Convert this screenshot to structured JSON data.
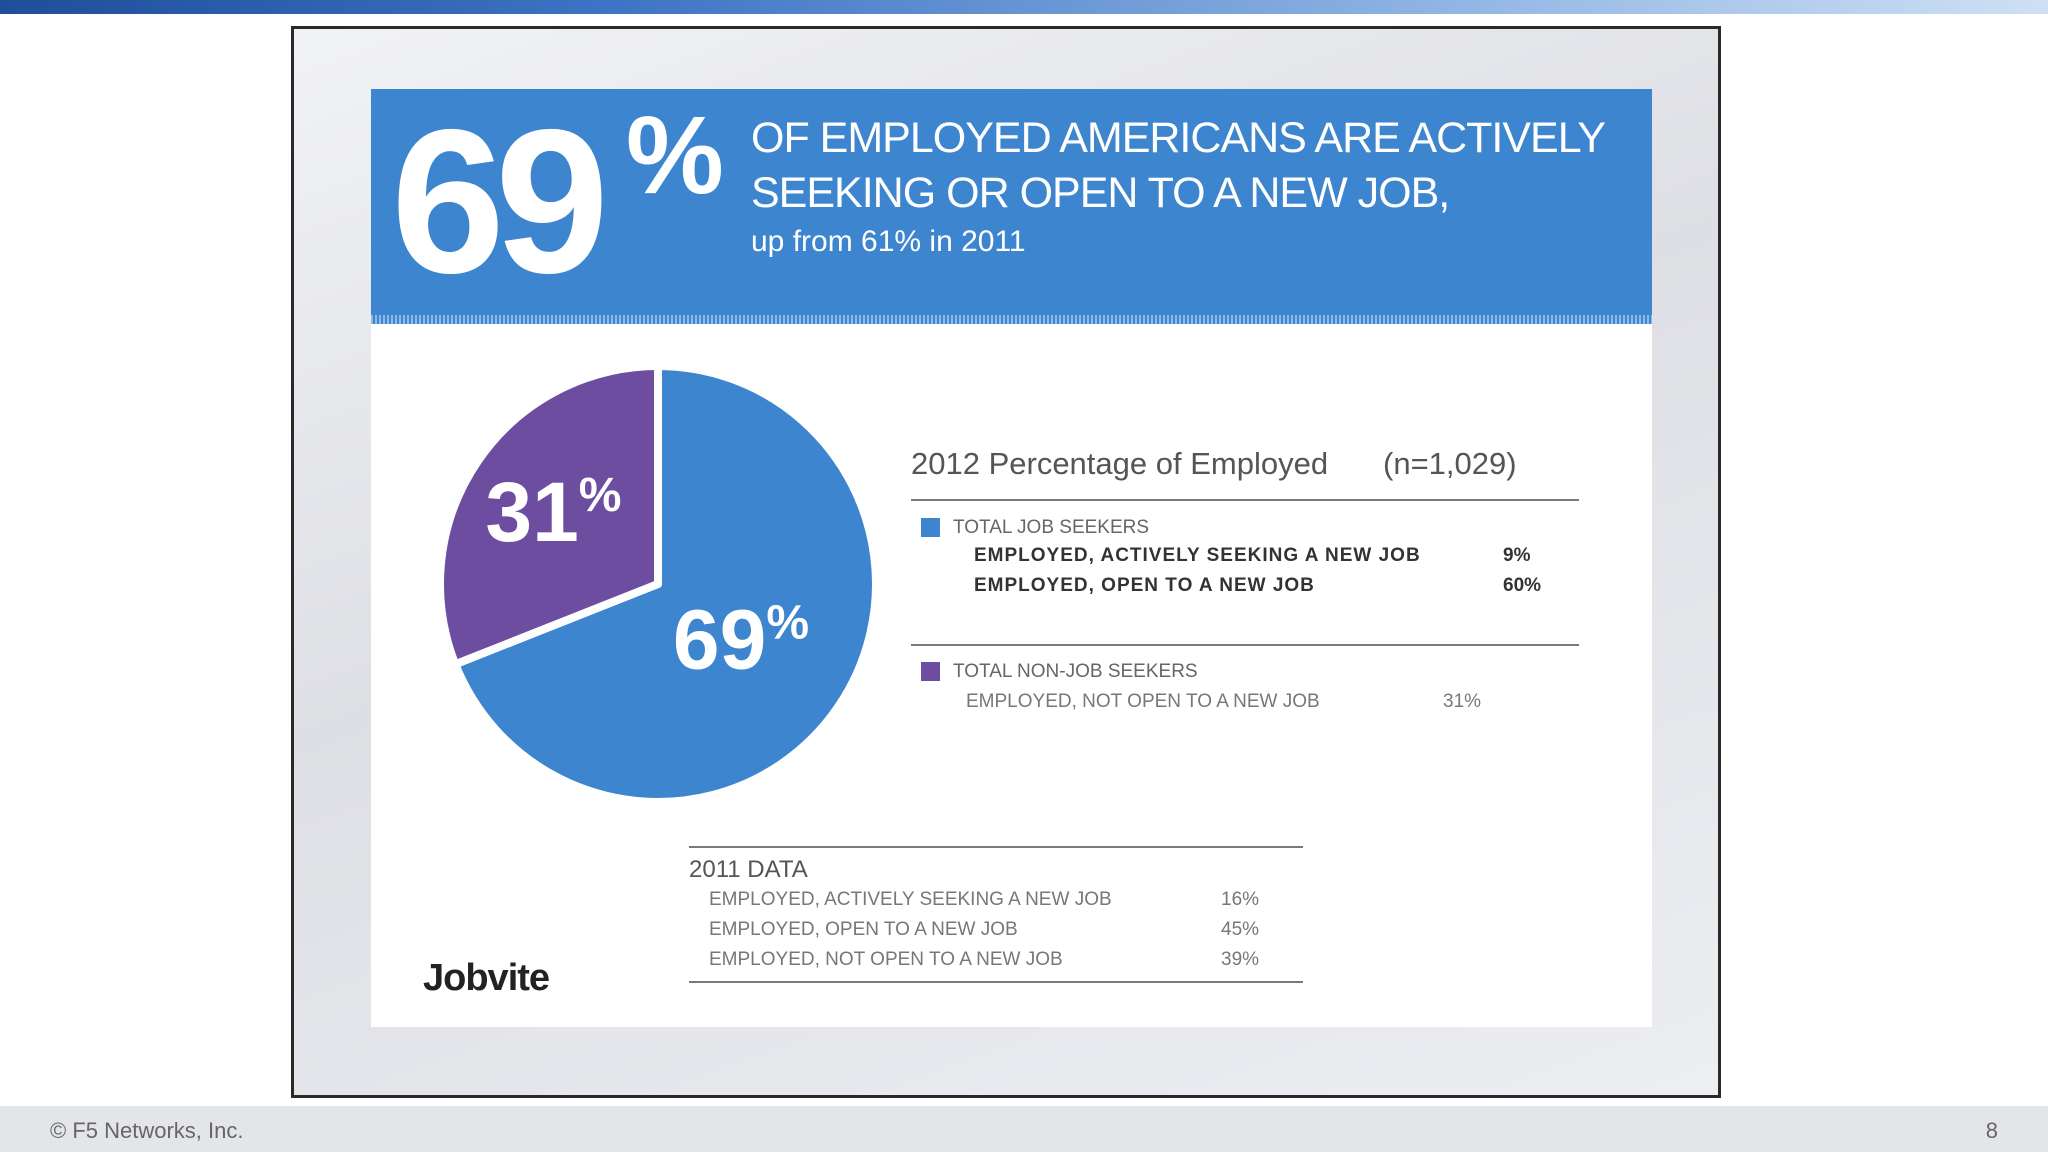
{
  "slide": {
    "headline_number": "69",
    "headline_percent": "%",
    "headline_line1": "OF EMPLOYED AMERICANS ARE ACTIVELY",
    "headline_line2": "SEEKING OR OPEN TO A NEW JOB,",
    "headline_sub": "up from 61% in 2011",
    "legend_title": "2012 Percentage of Employed",
    "legend_n": "(n=1,029)",
    "group_seekers": "TOTAL JOB SEEKERS",
    "group_non_seekers": "TOTAL NON-JOB SEEKERS",
    "rows_2012": [
      {
        "label": "EMPLOYED, ACTIVELY SEEKING A NEW JOB",
        "value": "9%"
      },
      {
        "label": "EMPLOYED, OPEN TO A NEW JOB",
        "value": "60%"
      },
      {
        "label": "EMPLOYED, NOT OPEN TO A NEW JOB",
        "value": "31%"
      }
    ],
    "data_2011_title": "2011 DATA",
    "rows_2011": [
      {
        "label": "EMPLOYED, ACTIVELY SEEKING A NEW JOB",
        "value": "16%"
      },
      {
        "label": "EMPLOYED, OPEN TO A NEW JOB",
        "value": "45%"
      },
      {
        "label": "EMPLOYED, NOT OPEN TO A NEW JOB",
        "value": "39%"
      }
    ],
    "brand": "Jobvite"
  },
  "footer": {
    "copyright": "© F5 Networks, Inc.",
    "page_number": "8"
  },
  "colors": {
    "seekers": "#3d86cf",
    "non_seekers": "#6c4da0"
  },
  "chart_data": {
    "type": "pie",
    "title": "",
    "slices": [
      {
        "value": 69,
        "label": "69%",
        "color": "#3d86cf"
      },
      {
        "value": 31,
        "label": "31%",
        "color": "#6c4da0"
      }
    ]
  }
}
